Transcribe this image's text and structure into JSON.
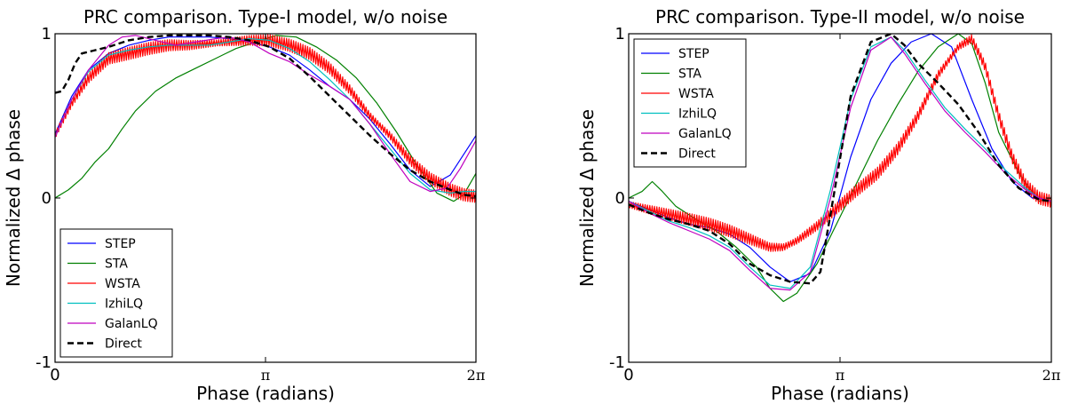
{
  "chart_data": [
    {
      "type": "line",
      "title": "PRC comparison. Type-I model, w/o noise",
      "xlabel": "Phase (radians)",
      "ylabel": "Normalized Δ phase",
      "xlim": [
        0,
        6.2832
      ],
      "ylim": [
        -1,
        1
      ],
      "x_ticks": [
        {
          "v": 0,
          "label": "0"
        },
        {
          "v": 3.1416,
          "label": "π"
        },
        {
          "v": 6.2832,
          "label": "2π"
        }
      ],
      "y_ticks": [
        {
          "v": -1,
          "label": "-1"
        },
        {
          "v": 0,
          "label": "0"
        },
        {
          "v": 1,
          "label": "1"
        }
      ],
      "grid": false,
      "legend": "lower-left",
      "series": [
        {
          "name": "STEP",
          "color": "#0000ff",
          "dash": false,
          "x": [
            0.0,
            0.25,
            0.5,
            0.8,
            1.1,
            1.4,
            1.7,
            2.0,
            2.3,
            2.6,
            2.9,
            3.2,
            3.5,
            3.8,
            4.1,
            4.4,
            4.7,
            5.0,
            5.3,
            5.6,
            5.9,
            6.2832
          ],
          "y": [
            0.39,
            0.62,
            0.78,
            0.88,
            0.93,
            0.96,
            0.98,
            0.98,
            0.98,
            0.97,
            0.95,
            0.92,
            0.87,
            0.78,
            0.68,
            0.6,
            0.48,
            0.33,
            0.17,
            0.07,
            0.14,
            0.38
          ]
        },
        {
          "name": "STA",
          "color": "#008000",
          "dash": false,
          "x": [
            0.0,
            0.2,
            0.4,
            0.6,
            0.8,
            1.0,
            1.2,
            1.5,
            1.8,
            2.1,
            2.4,
            2.7,
            3.0,
            3.3,
            3.6,
            3.9,
            4.2,
            4.5,
            4.8,
            5.1,
            5.4,
            5.7,
            5.95,
            6.1,
            6.2832
          ],
          "y": [
            0.0,
            0.05,
            0.12,
            0.22,
            0.3,
            0.42,
            0.53,
            0.65,
            0.73,
            0.79,
            0.85,
            0.91,
            0.95,
            0.99,
            0.98,
            0.92,
            0.84,
            0.73,
            0.58,
            0.4,
            0.2,
            0.03,
            -0.02,
            0.02,
            0.15
          ]
        },
        {
          "name": "WSTA",
          "color": "#ff0000",
          "dash": false,
          "jagged": true,
          "x": [
            0.0,
            0.25,
            0.5,
            0.8,
            1.1,
            1.4,
            1.7,
            2.0,
            2.3,
            2.6,
            2.9,
            3.2,
            3.5,
            3.8,
            4.1,
            4.4,
            4.7,
            5.0,
            5.3,
            5.6,
            5.9,
            6.1,
            6.2832
          ],
          "y": [
            0.38,
            0.58,
            0.73,
            0.85,
            0.88,
            0.91,
            0.93,
            0.93,
            0.94,
            0.95,
            0.96,
            0.96,
            0.93,
            0.88,
            0.79,
            0.66,
            0.5,
            0.38,
            0.23,
            0.12,
            0.05,
            0.02,
            0.01
          ]
        },
        {
          "name": "IzhiLQ",
          "color": "#00bfbf",
          "dash": false,
          "x": [
            0.0,
            0.25,
            0.5,
            0.8,
            1.1,
            1.4,
            1.7,
            2.0,
            2.3,
            2.6,
            2.9,
            3.2,
            3.5,
            3.8,
            4.1,
            4.4,
            4.7,
            5.0,
            5.3,
            5.6,
            5.9,
            6.1,
            6.2832
          ],
          "y": [
            0.37,
            0.6,
            0.77,
            0.87,
            0.9,
            0.92,
            0.93,
            0.93,
            0.93,
            0.95,
            0.97,
            0.96,
            0.91,
            0.83,
            0.72,
            0.6,
            0.45,
            0.3,
            0.15,
            0.05,
            0.03,
            0.04,
            0.04
          ]
        },
        {
          "name": "GalanLQ",
          "color": "#bf00bf",
          "dash": false,
          "x": [
            0.0,
            0.25,
            0.5,
            0.8,
            1.0,
            1.2,
            1.5,
            1.8,
            2.1,
            2.4,
            2.6,
            2.9,
            3.2,
            3.5,
            3.8,
            4.1,
            4.4,
            4.7,
            5.0,
            5.3,
            5.6,
            5.85,
            6.05,
            6.2832
          ],
          "y": [
            0.37,
            0.6,
            0.78,
            0.93,
            0.98,
            0.99,
            0.96,
            0.93,
            0.95,
            0.97,
            0.98,
            0.95,
            0.88,
            0.83,
            0.75,
            0.68,
            0.6,
            0.45,
            0.27,
            0.1,
            0.04,
            0.06,
            0.18,
            0.35
          ]
        },
        {
          "name": "Direct",
          "color": "#000000",
          "dash": true,
          "x": [
            0.0,
            0.1,
            0.2,
            0.3,
            0.4,
            0.6,
            0.8,
            1.1,
            1.4,
            1.7,
            2.0,
            2.3,
            2.6,
            2.9,
            3.2,
            3.5,
            3.8,
            4.1,
            4.4,
            4.7,
            5.0,
            5.3,
            5.6,
            5.9,
            6.1,
            6.2832
          ],
          "y": [
            0.64,
            0.65,
            0.72,
            0.82,
            0.88,
            0.9,
            0.92,
            0.96,
            0.98,
            0.99,
            0.99,
            0.99,
            0.98,
            0.96,
            0.92,
            0.85,
            0.74,
            0.62,
            0.5,
            0.38,
            0.27,
            0.17,
            0.1,
            0.05,
            0.02,
            0.01
          ]
        }
      ]
    },
    {
      "type": "line",
      "title": "PRC comparison. Type-II model, w/o noise",
      "xlabel": "Phase (radians)",
      "ylabel": "Normalized Δ phase",
      "xlim": [
        0,
        6.2832
      ],
      "ylim": [
        -1,
        1
      ],
      "x_ticks": [
        {
          "v": 0,
          "label": "0"
        },
        {
          "v": 3.1416,
          "label": "π"
        },
        {
          "v": 6.2832,
          "label": "2π"
        }
      ],
      "y_ticks": [
        {
          "v": -1,
          "label": "-1"
        },
        {
          "v": 0,
          "label": "0"
        },
        {
          "v": 1,
          "label": "1"
        }
      ],
      "grid": false,
      "legend": "upper-left",
      "series": [
        {
          "name": "STEP",
          "color": "#0000ff",
          "dash": false,
          "x": [
            0.0,
            0.3,
            0.6,
            0.9,
            1.2,
            1.5,
            1.8,
            2.1,
            2.4,
            2.7,
            3.0,
            3.3,
            3.6,
            3.9,
            4.2,
            4.5,
            4.8,
            5.1,
            5.4,
            5.7,
            6.0,
            6.2832
          ],
          "y": [
            -0.02,
            -0.07,
            -0.12,
            -0.16,
            -0.18,
            -0.22,
            -0.3,
            -0.42,
            -0.51,
            -0.46,
            -0.2,
            0.25,
            0.6,
            0.82,
            0.95,
            1.0,
            0.92,
            0.6,
            0.3,
            0.1,
            0.0,
            -0.02
          ]
        },
        {
          "name": "STA",
          "color": "#008000",
          "dash": false,
          "x": [
            0.0,
            0.2,
            0.35,
            0.5,
            0.7,
            1.0,
            1.3,
            1.6,
            1.9,
            2.1,
            2.3,
            2.5,
            2.8,
            3.1,
            3.4,
            3.7,
            4.0,
            4.3,
            4.6,
            4.9,
            5.1,
            5.3,
            5.5,
            5.8,
            6.1,
            6.2832
          ],
          "y": [
            0.0,
            0.04,
            0.1,
            0.04,
            -0.05,
            -0.13,
            -0.2,
            -0.3,
            -0.42,
            -0.55,
            -0.63,
            -0.58,
            -0.4,
            -0.15,
            0.1,
            0.35,
            0.57,
            0.77,
            0.92,
            1.0,
            0.94,
            0.7,
            0.4,
            0.15,
            -0.02,
            0.0
          ]
        },
        {
          "name": "WSTA",
          "color": "#ff0000",
          "dash": false,
          "jagged": true,
          "x": [
            0.0,
            0.3,
            0.6,
            0.9,
            1.2,
            1.5,
            1.8,
            2.1,
            2.3,
            2.5,
            2.8,
            3.1,
            3.4,
            3.7,
            4.0,
            4.3,
            4.6,
            4.9,
            5.1,
            5.3,
            5.5,
            5.7,
            5.9,
            6.1,
            6.2832
          ],
          "y": [
            -0.04,
            -0.07,
            -0.1,
            -0.13,
            -0.16,
            -0.2,
            -0.25,
            -0.3,
            -0.3,
            -0.26,
            -0.17,
            -0.06,
            0.05,
            0.15,
            0.3,
            0.5,
            0.75,
            0.92,
            0.97,
            0.8,
            0.5,
            0.25,
            0.08,
            0.0,
            -0.02
          ]
        },
        {
          "name": "IzhiLQ",
          "color": "#00bfbf",
          "dash": false,
          "x": [
            0.0,
            0.3,
            0.6,
            0.9,
            1.2,
            1.5,
            1.8,
            2.1,
            2.4,
            2.7,
            3.0,
            3.3,
            3.6,
            3.9,
            4.1,
            4.4,
            4.7,
            5.0,
            5.3,
            5.6,
            5.9,
            6.1,
            6.2832
          ],
          "y": [
            -0.02,
            -0.08,
            -0.14,
            -0.18,
            -0.23,
            -0.3,
            -0.42,
            -0.53,
            -0.55,
            -0.42,
            0.05,
            0.6,
            0.92,
            0.98,
            0.9,
            0.72,
            0.55,
            0.42,
            0.3,
            0.17,
            0.06,
            0.0,
            -0.02
          ]
        },
        {
          "name": "GalanLQ",
          "color": "#bf00bf",
          "dash": false,
          "x": [
            0.0,
            0.3,
            0.6,
            0.9,
            1.2,
            1.5,
            1.8,
            2.1,
            2.4,
            2.7,
            3.0,
            3.3,
            3.6,
            3.9,
            4.1,
            4.4,
            4.7,
            5.0,
            5.3,
            5.6,
            5.9,
            6.1,
            6.2832
          ],
          "y": [
            -0.02,
            -0.09,
            -0.15,
            -0.2,
            -0.25,
            -0.32,
            -0.44,
            -0.55,
            -0.56,
            -0.45,
            0.0,
            0.55,
            0.9,
            0.98,
            0.88,
            0.7,
            0.53,
            0.4,
            0.28,
            0.15,
            0.05,
            0.0,
            -0.02
          ]
        },
        {
          "name": "Direct",
          "color": "#000000",
          "dash": true,
          "x": [
            0.0,
            0.3,
            0.6,
            0.9,
            1.2,
            1.5,
            1.8,
            2.1,
            2.4,
            2.7,
            2.85,
            3.0,
            3.3,
            3.6,
            3.9,
            4.1,
            4.3,
            4.6,
            4.9,
            5.2,
            5.5,
            5.8,
            6.1,
            6.2832
          ],
          "y": [
            -0.04,
            -0.09,
            -0.13,
            -0.16,
            -0.2,
            -0.28,
            -0.4,
            -0.47,
            -0.51,
            -0.52,
            -0.45,
            -0.1,
            0.62,
            0.95,
            1.0,
            0.93,
            0.82,
            0.7,
            0.57,
            0.4,
            0.2,
            0.06,
            -0.01,
            -0.02
          ]
        }
      ]
    }
  ]
}
